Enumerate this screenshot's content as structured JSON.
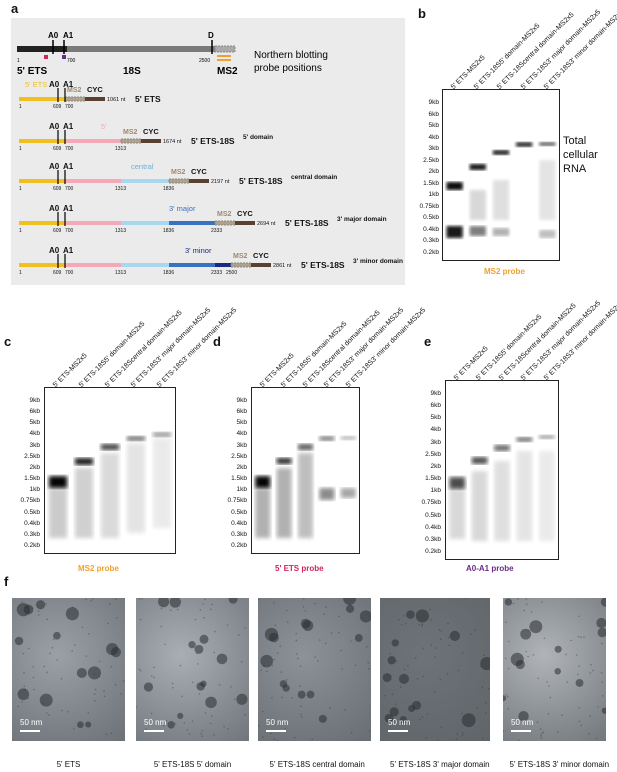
{
  "panels": {
    "a": "a",
    "b": "b",
    "c": "c",
    "d": "d",
    "e": "e",
    "f": "f"
  },
  "panel_a": {
    "overview": {
      "labels": [
        "5' ETS",
        "18S",
        "MS2",
        "A0",
        "A1",
        "D",
        "700",
        "2500",
        "1"
      ],
      "title_line1": "Northern blotting",
      "title_line2": "probe positions"
    },
    "constructs": [
      {
        "name": "5' ETS",
        "nt": "1061 nt",
        "sup": ""
      },
      {
        "name": "5' ETS-18S",
        "nt": "1674 nt",
        "sup": "5' domain"
      },
      {
        "name": "5' ETS-18S",
        "nt": "2197 nt",
        "sup": "central domain"
      },
      {
        "name": "5' ETS-18S",
        "nt": "2694 nt",
        "sup": "3' major domain"
      },
      {
        "name": "5' ETS-18S",
        "nt": "2861 nt",
        "sup": "3' minor domain"
      }
    ],
    "segment_labels": {
      "ets": "5' ETS",
      "five": "5'",
      "central": "central",
      "major": "3' major",
      "minor": "3' minor",
      "ms2": "MS2",
      "cyc": "CYC",
      "a0": "A0",
      "a1": "A1"
    },
    "positions": [
      "1",
      "609",
      "700",
      "1313",
      "1836",
      "2333",
      "2500"
    ]
  },
  "lanes_b": [
    "5' ETS-MS2x5",
    "5' ETS-18S5' domain-MS2x5",
    "5' ETS-18Scentral domain-MS2x5",
    "5' ETS-18S3' major domain-MS2x5",
    "5' ETS-18S3' minor domain-MS2x5"
  ],
  "ladder": [
    "9kb",
    "6kb",
    "5kb",
    "4kb",
    "3kb",
    "2.5kb",
    "2kb",
    "1.5kb",
    "1kb",
    "0.75kb",
    "0.5kb",
    "0.4kb",
    "0.3kb",
    "0.2kb"
  ],
  "total_rna": "Total cellular RNA",
  "probes": {
    "b": "MS2 probe",
    "c": "MS2 probe",
    "d": "5' ETS probe",
    "e": "A0-A1 probe"
  },
  "probe_colors": {
    "ms2": "#f0a030",
    "ets": "#d0245a",
    "a0a1": "#6a2a8a"
  },
  "em": {
    "scale": "50 nm",
    "captions": [
      "5' ETS",
      "5' ETS-18S 5' domain",
      "5' ETS-18S central domain",
      "5' ETS-18S 3' major domain",
      "5' ETS-18S 3' minor domain"
    ]
  }
}
